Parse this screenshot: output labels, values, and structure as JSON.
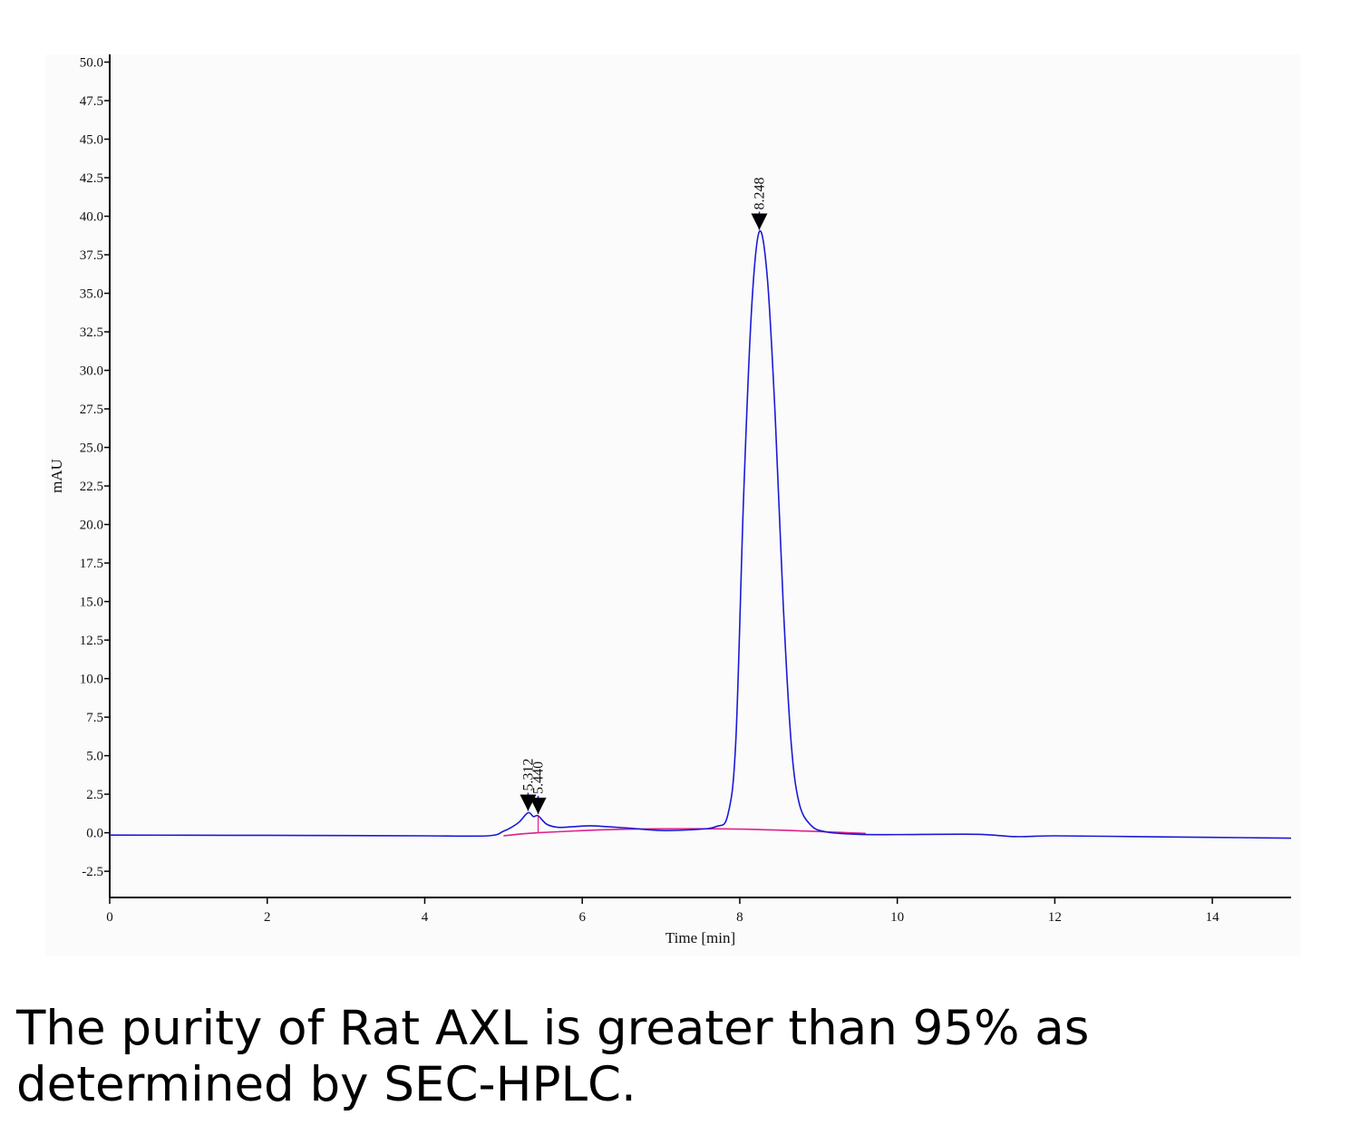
{
  "chart_data": {
    "type": "line",
    "xlabel": "Time [min]",
    "ylabel": "mAU",
    "xlim": [
      0,
      15
    ],
    "ylim": [
      -4.2,
      50.5
    ],
    "x_ticks": [
      0,
      2,
      4,
      6,
      8,
      10,
      12,
      14
    ],
    "y_ticks": [
      "-2.5",
      "0.0",
      "2.5",
      "5.0",
      "7.5",
      "10.0",
      "12.5",
      "15.0",
      "17.5",
      "20.0",
      "22.5",
      "25.0",
      "27.5",
      "30.0",
      "32.5",
      "35.0",
      "37.5",
      "40.0",
      "42.5",
      "45.0",
      "47.5",
      "50.0"
    ],
    "series": [
      {
        "color": "#1a1ad8",
        "x": [
          0,
          1,
          2,
          3,
          4,
          4.8,
          5.0,
          5.1,
          5.2,
          5.312,
          5.38,
          5.44,
          5.55,
          5.7,
          5.9,
          6.1,
          6.3,
          6.6,
          7.0,
          7.4,
          7.7,
          7.85,
          7.95,
          8.05,
          8.15,
          8.248,
          8.35,
          8.45,
          8.55,
          8.65,
          8.75,
          8.9,
          9.1,
          9.5,
          10,
          11,
          11.5,
          12,
          13,
          14,
          15
        ],
        "y": [
          -0.15,
          -0.16,
          -0.17,
          -0.18,
          -0.2,
          -0.2,
          0.1,
          0.35,
          0.7,
          1.3,
          1.05,
          1.1,
          0.55,
          0.35,
          0.4,
          0.45,
          0.4,
          0.3,
          0.15,
          0.2,
          0.4,
          1.2,
          6.0,
          22.0,
          34.0,
          39.0,
          36.0,
          27.0,
          15.0,
          6.0,
          2.0,
          0.5,
          0.05,
          -0.1,
          -0.12,
          -0.1,
          -0.25,
          -0.2,
          -0.25,
          -0.3,
          -0.35
        ]
      },
      {
        "name": "baseline",
        "color": "#e0208a",
        "x": [
          5.0,
          5.44,
          6.5,
          7.8,
          8.9,
          9.6
        ],
        "y": [
          -0.2,
          0.0,
          0.22,
          0.25,
          0.1,
          -0.05
        ]
      }
    ],
    "peaks": [
      {
        "label": "5.312",
        "x": 5.312,
        "y": 1.3
      },
      {
        "label": "5.440",
        "x": 5.44,
        "y": 1.1
      },
      {
        "label": "8.248",
        "x": 8.248,
        "y": 39.0
      }
    ]
  },
  "caption": "The purity of Rat AXL is greater than 95% as determined by SEC-HPLC."
}
